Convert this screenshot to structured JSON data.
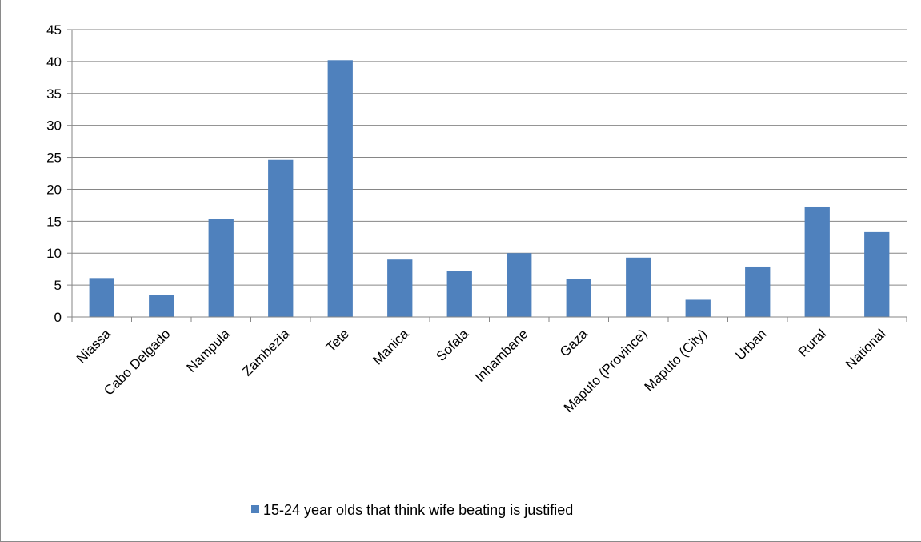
{
  "chart_data": {
    "type": "bar",
    "categories": [
      "Niassa",
      "Cabo Delgado",
      "Nampula",
      "Zambezia",
      "Tete",
      "Manica",
      "Sofala",
      "Inhambane",
      "Gaza",
      "Maputo (Province)",
      "Maputo (City)",
      "Urban",
      "Rural",
      "National"
    ],
    "series": [
      {
        "name": "15-24 year olds that think wife beating is justified",
        "values": [
          6.1,
          3.5,
          15.4,
          24.6,
          40.2,
          9.0,
          7.2,
          10.0,
          5.9,
          9.3,
          2.7,
          7.9,
          17.3,
          13.3
        ],
        "color": "#4f81bd"
      }
    ],
    "ylim": [
      0,
      45
    ],
    "yticks": [
      0,
      5,
      10,
      15,
      20,
      25,
      30,
      35,
      40,
      45
    ],
    "grid": true,
    "legend_position": "bottom",
    "title": "",
    "xlabel": "",
    "ylabel": ""
  },
  "legend": {
    "label": "15-24 year olds that think wife beating is justified",
    "color": "#4f81bd"
  }
}
